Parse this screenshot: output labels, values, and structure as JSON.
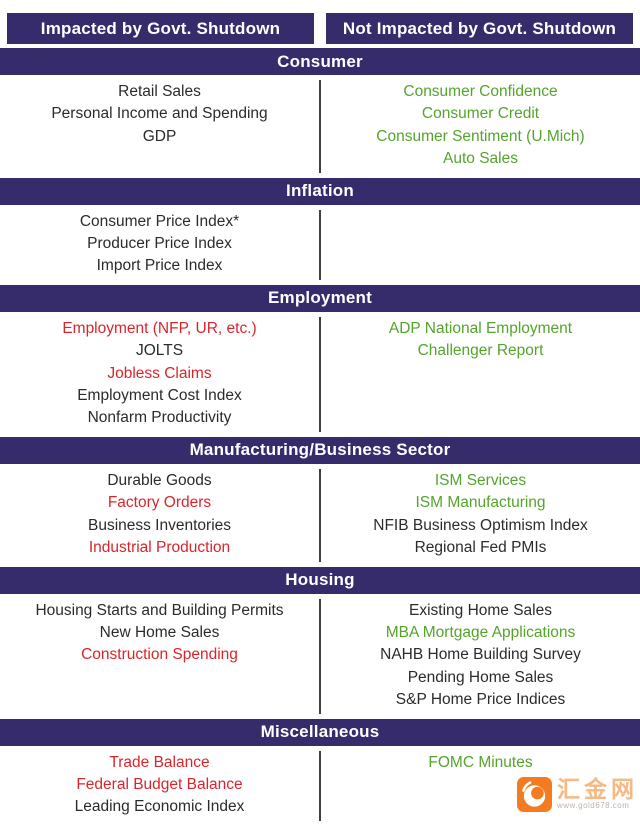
{
  "chart_data": {
    "type": "table",
    "columns": [
      "Impacted by Govt. Shutdown",
      "Not Impacted by Govt. Shutdown"
    ],
    "sections": [
      {
        "title": "Consumer",
        "impacted": [
          {
            "text": "Retail Sales",
            "color": "black"
          },
          {
            "text": "Personal Income and Spending",
            "color": "black"
          },
          {
            "text": "GDP",
            "color": "black"
          }
        ],
        "not_impacted": [
          {
            "text": "Consumer Confidence",
            "color": "green"
          },
          {
            "text": "Consumer Credit",
            "color": "green"
          },
          {
            "text": "Consumer Sentiment (U.Mich)",
            "color": "green"
          },
          {
            "text": "Auto Sales",
            "color": "green"
          }
        ]
      },
      {
        "title": "Inflation",
        "impacted": [
          {
            "text": "Consumer Price Index*",
            "color": "black"
          },
          {
            "text": "Producer Price Index",
            "color": "black"
          },
          {
            "text": "Import Price Index",
            "color": "black"
          }
        ],
        "not_impacted": []
      },
      {
        "title": "Employment",
        "impacted": [
          {
            "text": "Employment (NFP, UR, etc.)",
            "color": "red"
          },
          {
            "text": "JOLTS",
            "color": "black"
          },
          {
            "text": "Jobless Claims",
            "color": "red"
          },
          {
            "text": "Employment Cost Index",
            "color": "black"
          },
          {
            "text": "Nonfarm Productivity",
            "color": "black"
          }
        ],
        "not_impacted": [
          {
            "text": "ADP National Employment",
            "color": "green"
          },
          {
            "text": "Challenger Report",
            "color": "green"
          }
        ]
      },
      {
        "title": "Manufacturing/Business Sector",
        "impacted": [
          {
            "text": "Durable Goods",
            "color": "black"
          },
          {
            "text": "Factory Orders",
            "color": "red"
          },
          {
            "text": "Business Inventories",
            "color": "black"
          },
          {
            "text": "Industrial Production",
            "color": "red"
          }
        ],
        "not_impacted": [
          {
            "text": "ISM Services",
            "color": "green"
          },
          {
            "text": "ISM Manufacturing",
            "color": "green"
          },
          {
            "text": "NFIB Business Optimism Index",
            "color": "black"
          },
          {
            "text": "Regional Fed PMIs",
            "color": "black"
          }
        ]
      },
      {
        "title": "Housing",
        "impacted": [
          {
            "text": "Housing Starts and Building Permits",
            "color": "black"
          },
          {
            "text": "New Home Sales",
            "color": "black"
          },
          {
            "text": "Construction Spending",
            "color": "red"
          }
        ],
        "not_impacted": [
          {
            "text": "Existing Home Sales",
            "color": "black"
          },
          {
            "text": "MBA Mortgage Applications",
            "color": "green"
          },
          {
            "text": "NAHB Home Building Survey",
            "color": "black"
          },
          {
            "text": "Pending Home Sales",
            "color": "black"
          },
          {
            "text": "S&P Home Price Indices",
            "color": "black"
          }
        ]
      },
      {
        "title": "Miscellaneous",
        "impacted": [
          {
            "text": "Trade Balance",
            "color": "red"
          },
          {
            "text": "Federal Budget Balance",
            "color": "red"
          },
          {
            "text": "Leading Economic Index",
            "color": "black"
          }
        ],
        "not_impacted": [
          {
            "text": "FOMC Minutes",
            "color": "green"
          }
        ]
      }
    ]
  },
  "watermark": {
    "brand": "汇金网",
    "url": "www.gold678.com"
  },
  "colors": {
    "purple": "#362b6b",
    "red": "#d9252b",
    "green": "#55a42d",
    "black": "#2b2b2b",
    "divider": "#3f3f3f",
    "logo_orange": "#f47b20",
    "watermark_text": "#f5b983",
    "url_gray": "#bdb3ab"
  }
}
